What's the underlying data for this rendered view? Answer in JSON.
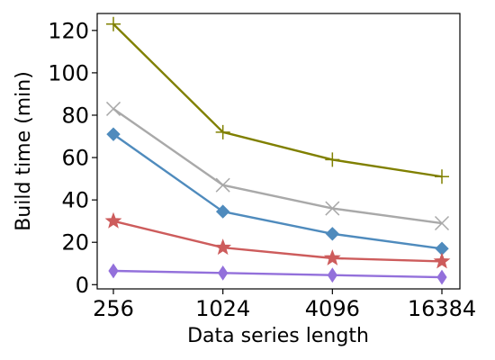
{
  "chart_data": {
    "type": "line",
    "xlabel": "Data series length",
    "ylabel": "Build time (min)",
    "x_scale": "log2",
    "x": [
      256,
      1024,
      4096,
      16384
    ],
    "x_tick_labels": [
      "256",
      "1024",
      "4096",
      "16384"
    ],
    "ylim": [
      -2,
      128
    ],
    "y_ticks": [
      0,
      20,
      40,
      60,
      80,
      100,
      120
    ],
    "y_tick_labels": [
      "0",
      "20",
      "40",
      "60",
      "80",
      "100",
      "120"
    ],
    "grid": false,
    "series": [
      {
        "color": "#808000",
        "marker": "plus",
        "values": [
          123,
          72,
          59,
          51
        ]
      },
      {
        "color": "#a9a9a9",
        "marker": "x",
        "values": [
          83,
          47,
          36,
          29
        ]
      },
      {
        "color": "#4f8bbd",
        "marker": "diamond",
        "values": [
          71,
          34.5,
          24,
          17
        ]
      },
      {
        "color": "#cd5c5c",
        "marker": "star",
        "values": [
          30,
          17.5,
          12.5,
          11
        ]
      },
      {
        "color": "#9370db",
        "marker": "thin-diamond",
        "values": [
          6.5,
          5.5,
          4.5,
          3.5
        ]
      }
    ]
  }
}
